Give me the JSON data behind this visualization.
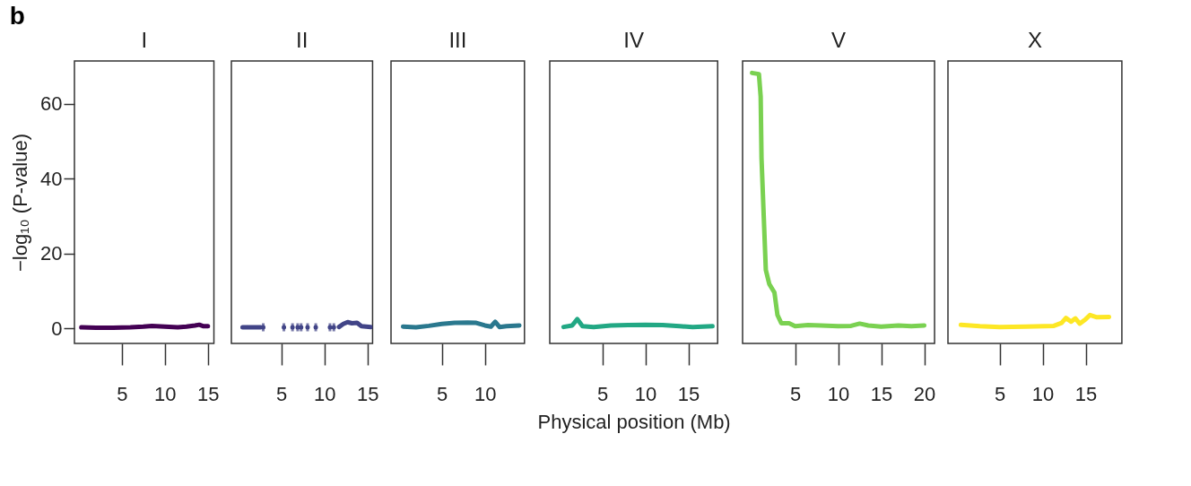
{
  "chart_data": [
    {
      "type": "line",
      "title": "I",
      "ylabel": "−log₁₀ (P-value)",
      "annotations": [
        "b"
      ],
      "xlim": [
        -0.5,
        15.7
      ],
      "xticks": [
        5,
        10,
        15
      ],
      "ylim": [
        -4,
        71.5
      ],
      "yticks": [
        0,
        20,
        40,
        60
      ],
      "x": [
        0.3,
        2,
        4,
        6,
        7.5,
        8.5,
        10,
        11.5,
        12.5,
        13.5,
        14,
        14.5,
        15
      ],
      "series": [
        {
          "color": "#440154",
          "values": [
            0.3,
            0.2,
            0.2,
            0.3,
            0.5,
            0.7,
            0.5,
            0.3,
            0.5,
            0.8,
            1.0,
            0.6,
            0.6
          ]
        }
      ]
    },
    {
      "type": "line",
      "title": "II",
      "tick_labels": "x",
      "xlim": [
        -0.8,
        15.6
      ],
      "xticks": [
        5,
        10,
        15
      ],
      "ylim": [
        -4,
        71.5
      ],
      "yticks": [
        0,
        20,
        40,
        60
      ],
      "x": [
        0.5,
        1.0,
        1.05,
        1.1,
        2.6,
        2.7,
        2.9,
        4.0,
        5.3,
        5.8,
        6.3,
        6.6,
        6.9,
        7.1,
        7.3,
        7.6,
        8.05,
        8.5,
        9.0,
        9.8,
        10.65,
        10.9,
        11.1,
        11.4,
        11.7,
        12.2,
        12.7,
        13.2,
        13.8,
        14.3,
        15.4
      ],
      "series": [
        {
          "color": "#414487",
          "values": [
            0.3,
            0.3,
            null,
            0.3,
            0.3,
            null,
            0.3,
            null,
            0.3,
            null,
            0.3,
            null,
            0.3,
            null,
            0.3,
            null,
            0.3,
            null,
            0.3,
            null,
            0.3,
            null,
            0.3,
            null,
            0.4,
            1.2,
            1.7,
            1.4,
            1.5,
            0.6,
            0.4
          ]
        }
      ]
    },
    {
      "type": "line",
      "title": "III",
      "tick_labels": "x",
      "xlim": [
        -0.9,
        14.6
      ],
      "xticks": [
        5,
        10
      ],
      "ylim": [
        -4,
        71.5
      ],
      "yticks": [
        0,
        20,
        40,
        60
      ],
      "x": [
        0.5,
        2,
        3.5,
        5,
        6.5,
        8,
        9,
        10,
        10.7,
        11.2,
        11.7,
        12.5,
        14
      ],
      "series": [
        {
          "color": "#2a788e",
          "values": [
            0.5,
            0.3,
            0.7,
            1.2,
            1.5,
            1.6,
            1.5,
            0.8,
            0.5,
            1.8,
            0.4,
            0.6,
            0.8
          ]
        }
      ]
    },
    {
      "type": "line",
      "title": "IV",
      "xlabel": "Physical position (Mb)",
      "tick_labels": "x",
      "xlim": [
        -1.1,
        18.4
      ],
      "xticks": [
        5,
        10,
        15
      ],
      "ylim": [
        -4,
        71.5
      ],
      "yticks": [
        0,
        20,
        40,
        60
      ],
      "x": [
        0.5,
        1.5,
        2.1,
        2.7,
        4,
        6,
        8,
        10,
        12,
        14,
        15.5,
        17.8
      ],
      "series": [
        {
          "color": "#22a884",
          "values": [
            0.4,
            0.8,
            2.5,
            0.6,
            0.4,
            0.8,
            0.9,
            1.0,
            0.9,
            0.6,
            0.4,
            0.6
          ]
        }
      ]
    },
    {
      "type": "line",
      "title": "V",
      "tick_labels": "x",
      "xlim": [
        -1.1,
        21.2
      ],
      "xticks": [
        5,
        10,
        15,
        20
      ],
      "ylim": [
        -4,
        71.5
      ],
      "yticks": [
        0,
        20,
        40,
        60
      ],
      "x": [
        0.0,
        0.8,
        1.0,
        1.1,
        1.35,
        1.6,
        2.0,
        2.6,
        2.95,
        3.4,
        4.3,
        5.0,
        6.5,
        8,
        10,
        11.5,
        12.5,
        13.5,
        15,
        17,
        18.5,
        20
      ],
      "series": [
        {
          "color": "#7ad151",
          "values": [
            68.3,
            68.0,
            62,
            45.5,
            30.5,
            15.6,
            11.9,
            9.6,
            3.6,
            1.4,
            1.4,
            0.6,
            0.9,
            0.8,
            0.6,
            0.7,
            1.3,
            0.8,
            0.5,
            0.8,
            0.6,
            0.8
          ]
        }
      ]
    },
    {
      "type": "line",
      "title": "X",
      "tick_labels": "x",
      "xlim": [
        -1,
        19.2
      ],
      "xticks": [
        5,
        10,
        15
      ],
      "ylim": [
        -4,
        71.5
      ],
      "yticks": [
        0,
        20,
        40,
        60
      ],
      "x": [
        0.5,
        2.7,
        5,
        8,
        11.3,
        12.2,
        12.7,
        13.3,
        13.8,
        14.3,
        15,
        15.5,
        16.3,
        17.7
      ],
      "series": [
        {
          "color": "#fde725",
          "values": [
            1.0,
            0.6,
            0.4,
            0.5,
            0.7,
            1.5,
            2.8,
            1.8,
            2.7,
            1.3,
            2.5,
            3.6,
            3.0,
            3.1
          ]
        }
      ]
    }
  ]
}
